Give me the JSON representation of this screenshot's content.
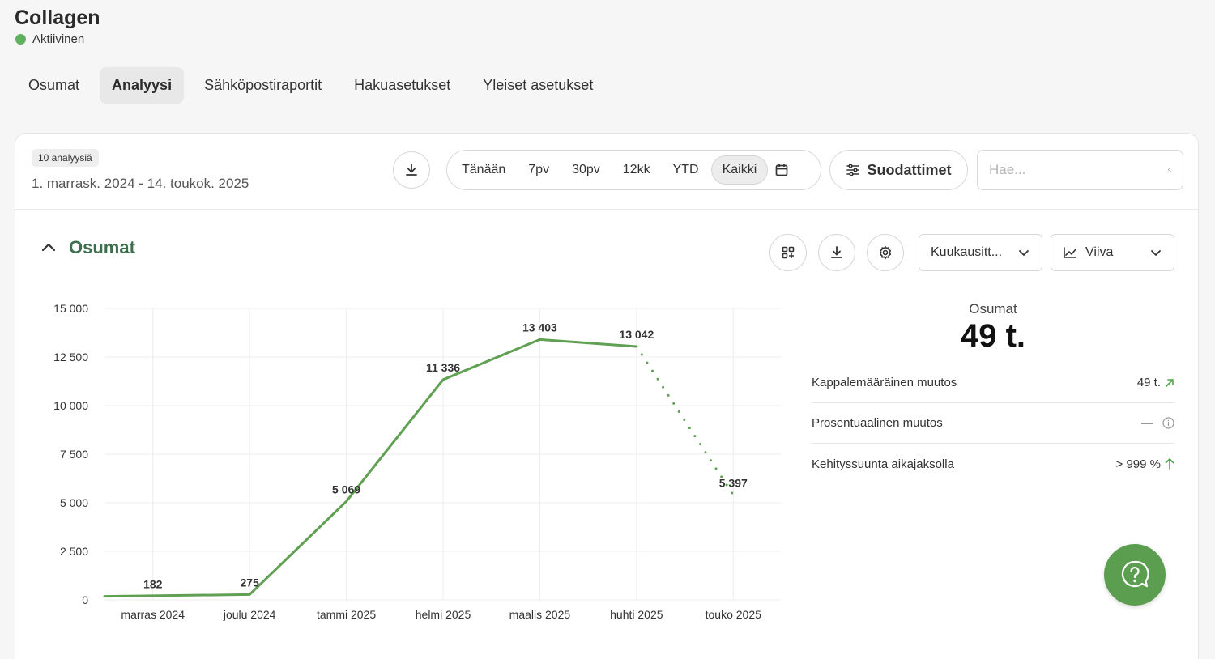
{
  "header": {
    "title": "Collagen",
    "status": "Aktiivinen",
    "status_color": "#5fb05f"
  },
  "tabs": [
    {
      "label": "Osumat",
      "active": false
    },
    {
      "label": "Analyysi",
      "active": true
    },
    {
      "label": "Sähköpostiraportit",
      "active": false
    },
    {
      "label": "Hakuasetukset",
      "active": false
    },
    {
      "label": "Yleiset asetukset",
      "active": false
    }
  ],
  "toolbar": {
    "count_badge": "10 analyysiä",
    "date_range": "1. marrask. 2024 - 14. toukok. 2025",
    "periods": [
      "Tänään",
      "7pv",
      "30pv",
      "12kk",
      "YTD",
      "Kaikki"
    ],
    "active_period": "Kaikki",
    "filters_label": "Suodattimet",
    "search_placeholder": "Hae..."
  },
  "section": {
    "title": "Osumat",
    "interval_select": "Kuukausitt...",
    "chart_type_select": "Viiva"
  },
  "summary": {
    "label": "Osumat",
    "value": "49 t.",
    "rows": [
      {
        "label": "Kappalemääräinen muutos",
        "value": "49 t.",
        "icon": "arrow-up-right-icon"
      },
      {
        "label": "Prosentuaalinen muutos",
        "value": "—",
        "icon": "info-icon"
      },
      {
        "label": "Kehityssuunta aikajaksolla",
        "value": "> 999 %",
        "icon": "arrow-up-icon"
      }
    ]
  },
  "chart_data": {
    "type": "line",
    "categories": [
      "marras 2024",
      "joulu 2024",
      "tammi 2025",
      "helmi 2025",
      "maalis 2025",
      "huhti 2025",
      "touko 2025"
    ],
    "series": [
      {
        "values": [
          182,
          275,
          5069,
          11336,
          13403,
          13042,
          5397
        ],
        "color": "#5fa052",
        "dotted_last_segment": true
      }
    ],
    "data_labels": [
      "182",
      "275",
      "5 069",
      "11 336",
      "13 403",
      "13 042",
      "5 397"
    ],
    "ylim": [
      0,
      15000
    ],
    "yticks": [
      0,
      2500,
      5000,
      7500,
      10000,
      12500,
      15000
    ],
    "ytick_labels": [
      "0",
      "2 500",
      "5 000",
      "7 500",
      "10 000",
      "12 500",
      "15 000"
    ],
    "grid": true,
    "xlabel": "",
    "ylabel": ""
  }
}
